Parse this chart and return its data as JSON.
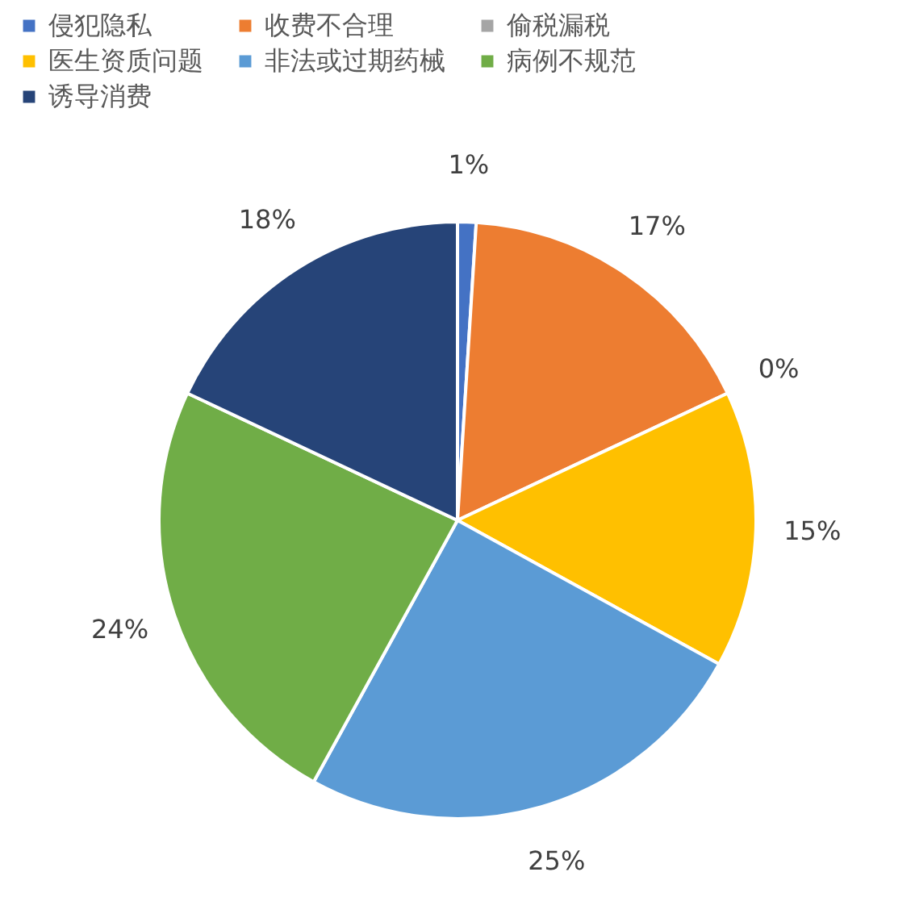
{
  "chart_data": {
    "type": "pie",
    "categories": [
      "侵犯隐私",
      "收费不合理",
      "偷税漏税",
      "医生资质问题",
      "非法或过期药械",
      "病例不规范",
      "诱导消费"
    ],
    "values": [
      1,
      17,
      0,
      15,
      25,
      24,
      18
    ],
    "colors": [
      "#4472c4",
      "#ed7d31",
      "#a5a5a5",
      "#ffc000",
      "#5b9bd5",
      "#70ad47",
      "#264478"
    ],
    "value_labels": [
      "1%",
      "17%",
      "0%",
      "15%",
      "25%",
      "24%",
      "18%"
    ],
    "legend": "top"
  }
}
